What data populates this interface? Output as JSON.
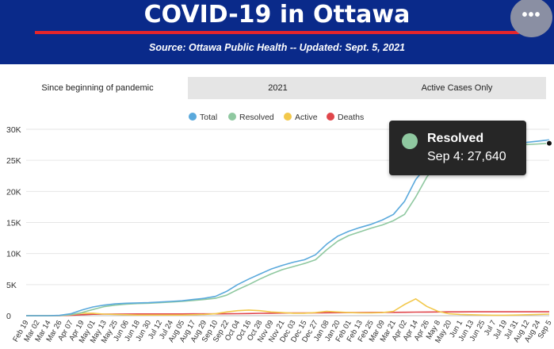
{
  "header": {
    "title": "COVID-19 in Ottawa",
    "source": "Source:  Ottawa Public Health -- Updated:  Sept. 5, 2021",
    "menu_icon": "more-horizontal-icon",
    "background": "#0a2a8a",
    "accent": "#e5252b"
  },
  "tabs": [
    {
      "label": "Since beginning of pandemic",
      "active": true
    },
    {
      "label": "2021",
      "active": false
    },
    {
      "label": "Active Cases Only",
      "active": false
    }
  ],
  "tooltip": {
    "series": "Resolved",
    "text": "Sep 4: 27,640",
    "color": "#8fc8a0"
  },
  "chart_data": {
    "type": "line",
    "legend_position": "top-center",
    "grid": true,
    "ylim": [
      0,
      30000
    ],
    "yticks": [
      {
        "value": 0,
        "label": "0"
      },
      {
        "value": 5000,
        "label": "5K"
      },
      {
        "value": 10000,
        "label": "10K"
      },
      {
        "value": 15000,
        "label": "15K"
      },
      {
        "value": 20000,
        "label": "20K"
      },
      {
        "value": 25000,
        "label": "25K"
      },
      {
        "value": 30000,
        "label": "30K"
      }
    ],
    "x_tick_labels": [
      "Feb 19",
      "Mar 02",
      "Mar 14",
      "Mar 26",
      "Apr 07",
      "Apr 19",
      "May 01",
      "May 13",
      "May 25",
      "Jun 06",
      "Jun 18",
      "Jun 30",
      "Jul 12",
      "Jul 24",
      "Aug 05",
      "Aug 17",
      "Aug 29",
      "Sep 10",
      "Sep 22",
      "Oct 04",
      "Oct 16",
      "Oct 28",
      "Nov 09",
      "Nov 21",
      "Dec 03",
      "Dec 15",
      "Dec 27",
      "Jan 08",
      "Jan 20",
      "Feb 01",
      "Feb 13",
      "Feb 25",
      "Mar 09",
      "Mar 21",
      "Apr 02",
      "Apr 14",
      "Apr 26",
      "May 8",
      "May 20",
      "Jun 1",
      "Jun 13",
      "Jun 25",
      "Jul 7",
      "Jul 19",
      "Jul 31",
      "Aug 12",
      "Aug 24",
      "Sep 5"
    ],
    "series": [
      {
        "name": "Total",
        "color": "#5aa9dc",
        "values": [
          0,
          0,
          0,
          50,
          300,
          900,
          1400,
          1700,
          1900,
          2000,
          2050,
          2100,
          2200,
          2300,
          2400,
          2600,
          2800,
          3100,
          3900,
          5000,
          5900,
          6700,
          7500,
          8100,
          8600,
          9000,
          9800,
          11500,
          12800,
          13600,
          14200,
          14700,
          15400,
          16300,
          18400,
          21900,
          24100,
          25500,
          26300,
          26900,
          27200,
          27350,
          27450,
          27550,
          27700,
          27900,
          28100,
          28300
        ]
      },
      {
        "name": "Resolved",
        "color": "#8fc8a0",
        "values": [
          0,
          0,
          0,
          20,
          150,
          500,
          1000,
          1450,
          1700,
          1850,
          1950,
          2000,
          2100,
          2200,
          2300,
          2450,
          2600,
          2800,
          3300,
          4200,
          5000,
          5900,
          6700,
          7400,
          7900,
          8400,
          9000,
          10600,
          12000,
          12900,
          13500,
          14100,
          14600,
          15300,
          16300,
          19100,
          22300,
          24700,
          25900,
          26500,
          26900,
          27100,
          27250,
          27380,
          27480,
          27550,
          27640,
          27750
        ]
      },
      {
        "name": "Active",
        "color": "#f2c84b",
        "values": [
          0,
          0,
          0,
          30,
          150,
          400,
          400,
          250,
          200,
          150,
          100,
          100,
          100,
          100,
          100,
          150,
          200,
          300,
          600,
          800,
          900,
          800,
          600,
          500,
          400,
          400,
          500,
          700,
          600,
          500,
          450,
          450,
          500,
          700,
          1800,
          2700,
          1500,
          700,
          300,
          200,
          150,
          100,
          80,
          80,
          100,
          150,
          200,
          250
        ]
      },
      {
        "name": "Deaths",
        "color": "#e0464b",
        "values": [
          0,
          0,
          0,
          10,
          50,
          150,
          230,
          260,
          270,
          270,
          275,
          280,
          280,
          285,
          285,
          290,
          290,
          295,
          300,
          320,
          350,
          380,
          400,
          420,
          430,
          440,
          450,
          470,
          490,
          500,
          510,
          520,
          530,
          540,
          550,
          570,
          590,
          600,
          610,
          615,
          620,
          620,
          622,
          623,
          624,
          625,
          626,
          628
        ]
      }
    ]
  }
}
